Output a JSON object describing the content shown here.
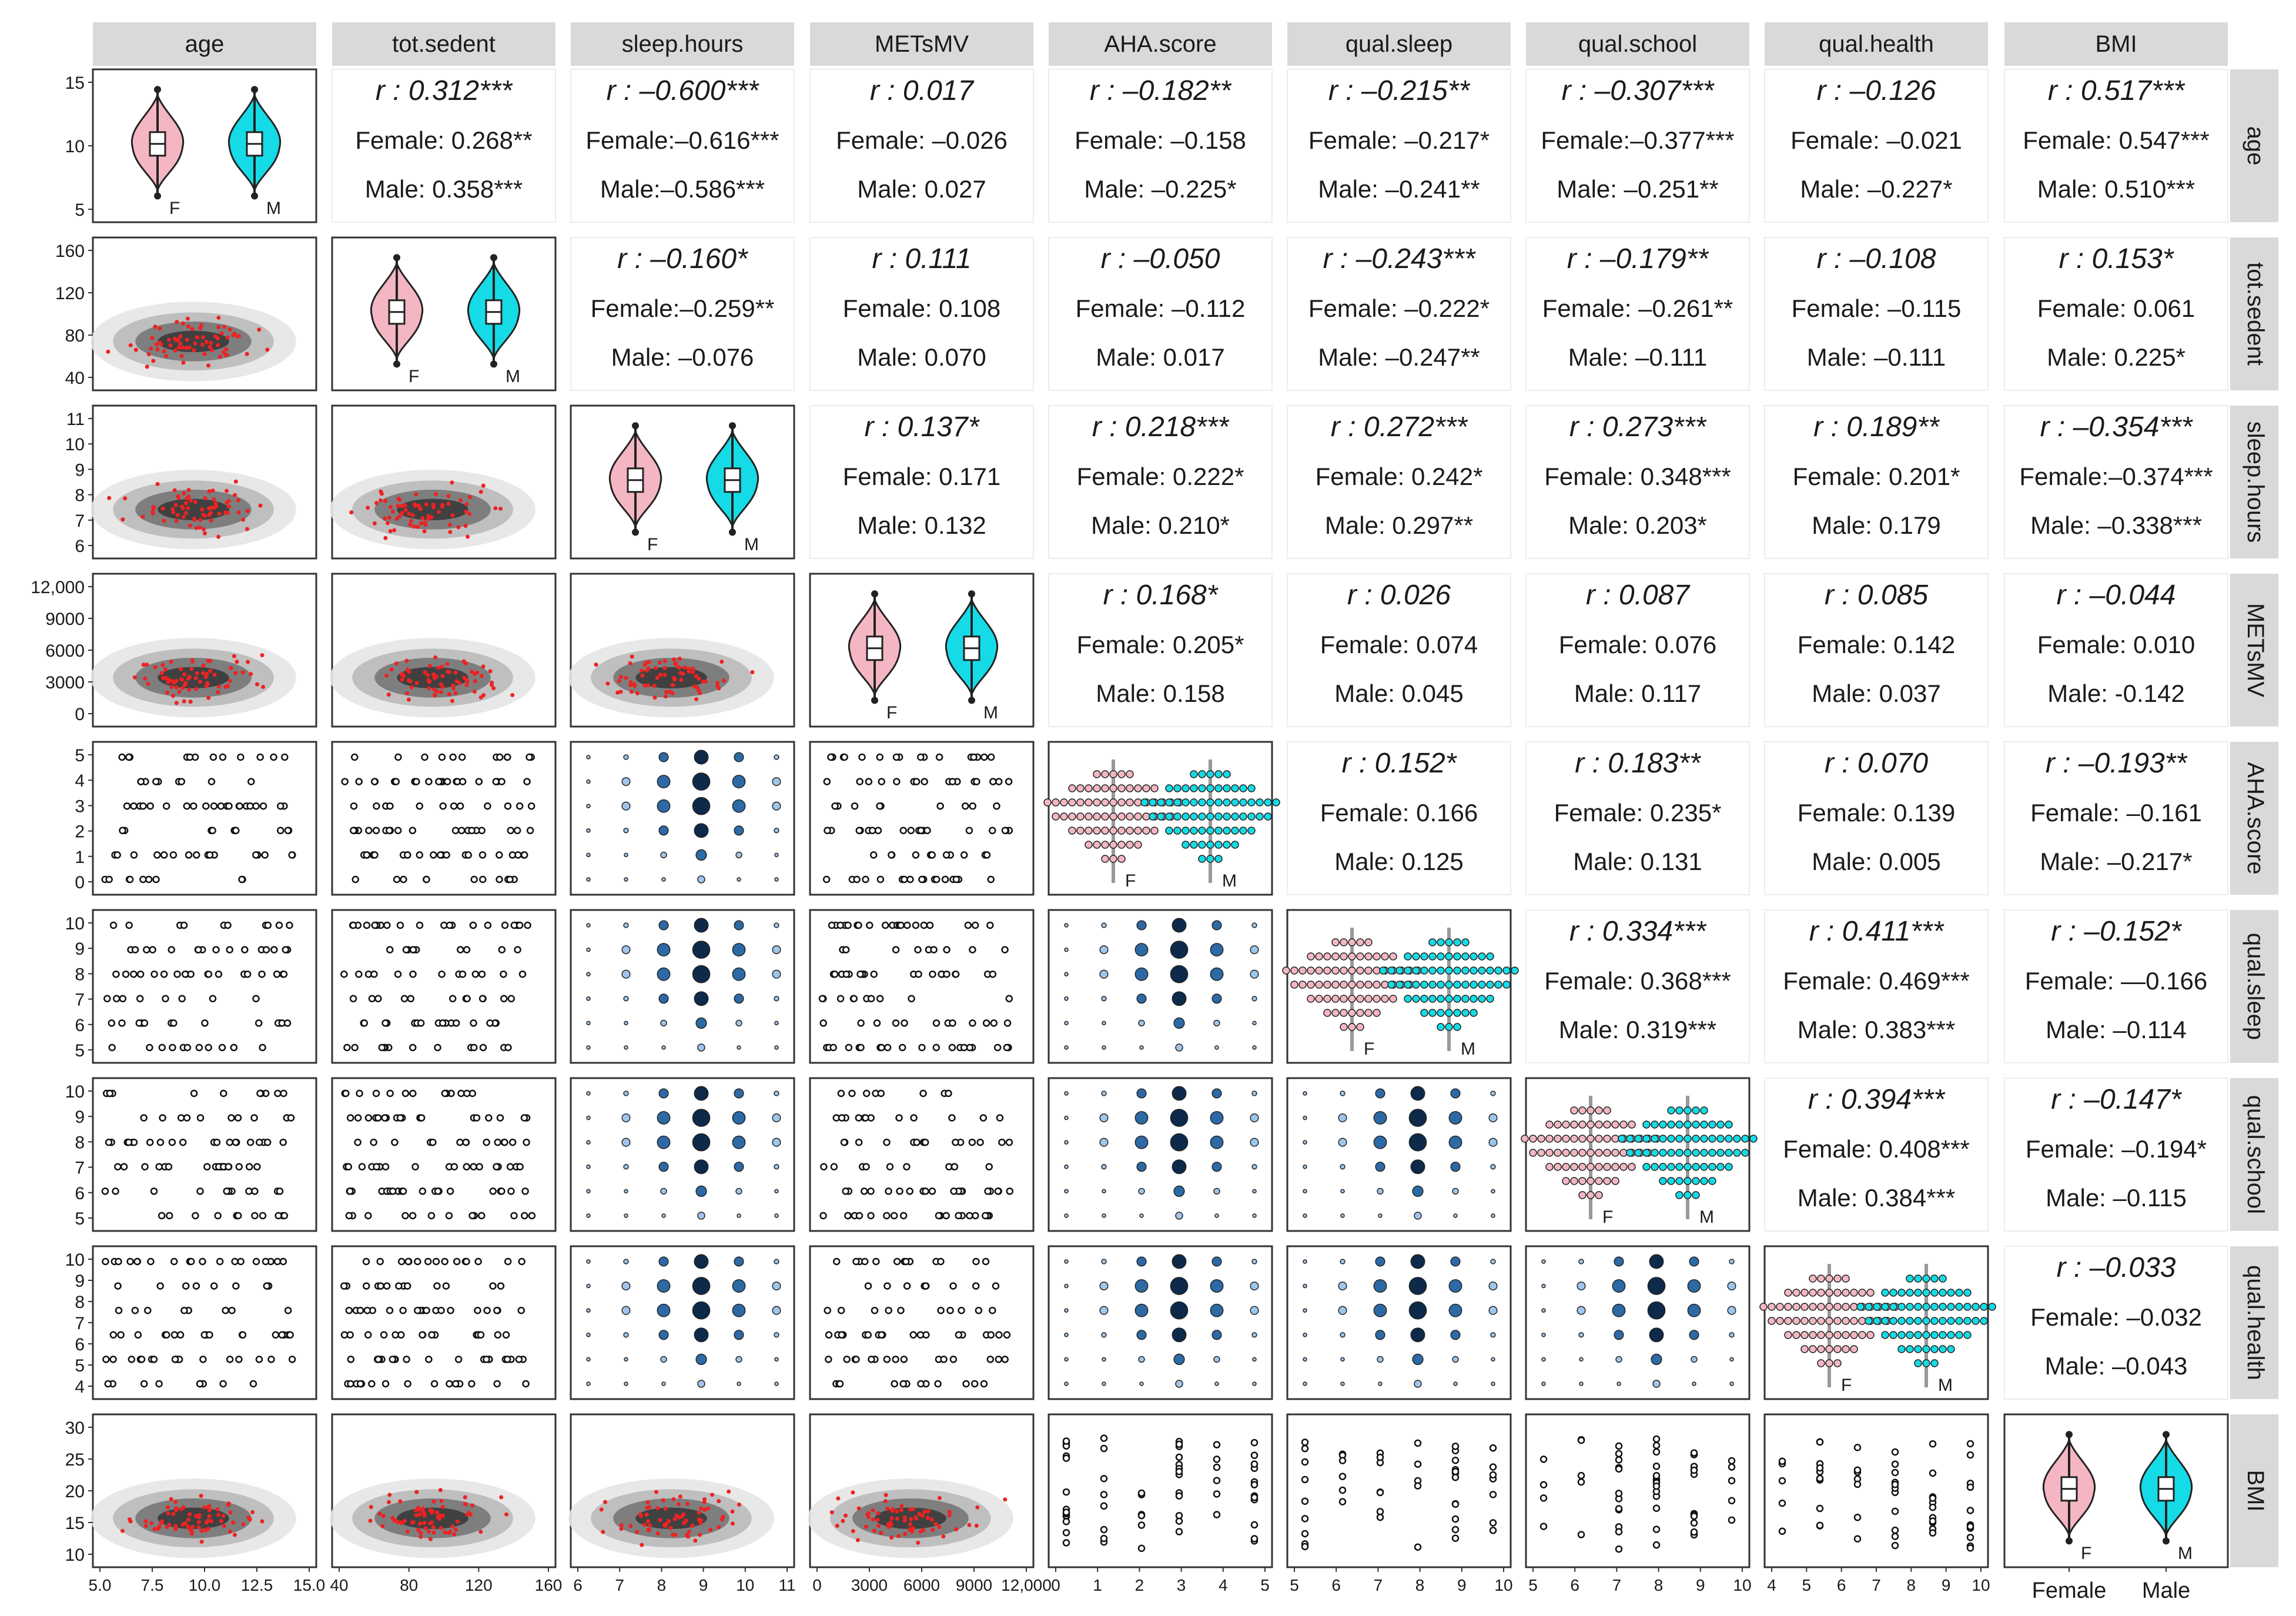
{
  "chart_data": {
    "type": "pairs",
    "title": "",
    "variables": [
      "age",
      "tot.sedent",
      "sleep.hours",
      "METsMV",
      "AHA.score",
      "qual.sleep",
      "qual.school",
      "qual.health",
      "BMI"
    ],
    "groups": [
      "Female",
      "Male"
    ],
    "group_short": [
      "F",
      "M"
    ],
    "colors": {
      "female": "#f4b6c2",
      "male": "#15dbe6",
      "points": "#ee2222",
      "strip": "#d9d9d9",
      "bubble_light": "#9fc6ea",
      "bubble_dark": "#0d2a4a",
      "density_light": "#e6e6e6",
      "density_dark": "#222222"
    },
    "axis": {
      "y_ticks": [
        [
          "5",
          "10",
          "15"
        ],
        [
          "40",
          "80",
          "120",
          "160"
        ],
        [
          "6",
          "7",
          "8",
          "9",
          "10",
          "11"
        ],
        [
          "0",
          "3000",
          "6000",
          "9000",
          "12,000"
        ],
        [
          "0",
          "1",
          "2",
          "3",
          "4",
          "5"
        ],
        [
          "5",
          "6",
          "7",
          "8",
          "9",
          "10"
        ],
        [
          "5",
          "6",
          "7",
          "8",
          "9",
          "10"
        ],
        [
          "4",
          "5",
          "6",
          "7",
          "8",
          "9",
          "10"
        ],
        [
          "10",
          "15",
          "20",
          "25",
          "30"
        ]
      ],
      "x_ticks": [
        [
          "5.0",
          "7.5",
          "10.0",
          "12.5",
          "15.0"
        ],
        [
          "40",
          "80",
          "120",
          "160"
        ],
        [
          "6",
          "7",
          "8",
          "9",
          "10",
          "11"
        ],
        [
          "0",
          "3000",
          "6000",
          "9000",
          "12,000"
        ],
        [
          "0",
          "1",
          "2",
          "3",
          "4",
          "5"
        ],
        [
          "5",
          "6",
          "7",
          "8",
          "9",
          "10"
        ],
        [
          "5",
          "6",
          "7",
          "8",
          "9",
          "10"
        ],
        [
          "4",
          "5",
          "6",
          "7",
          "8",
          "9",
          "10"
        ],
        [
          "Female",
          "Male"
        ]
      ]
    },
    "correlations": [
      {
        "row": "age",
        "col": "tot.sedent",
        "r": "r : 0.312***",
        "female": "Female: 0.268**",
        "male": "Male: 0.358***"
      },
      {
        "row": "age",
        "col": "sleep.hours",
        "r": "r : –0.600***",
        "female": "Female:–0.616***",
        "male": "Male:–0.586***"
      },
      {
        "row": "age",
        "col": "METsMV",
        "r": "r : 0.017",
        "female": "Female: –0.026",
        "male": "Male: 0.027"
      },
      {
        "row": "age",
        "col": "AHA.score",
        "r": "r : –0.182**",
        "female": "Female: –0.158",
        "male": "Male: –0.225*"
      },
      {
        "row": "age",
        "col": "qual.sleep",
        "r": "r : –0.215**",
        "female": "Female: –0.217*",
        "male": "Male: –0.241**"
      },
      {
        "row": "age",
        "col": "qual.school",
        "r": "r : –0.307***",
        "female": "Female:–0.377***",
        "male": "Male: –0.251**"
      },
      {
        "row": "age",
        "col": "qual.health",
        "r": "r : –0.126",
        "female": "Female: –0.021",
        "male": "Male: –0.227*"
      },
      {
        "row": "age",
        "col": "BMI",
        "r": "r : 0.517***",
        "female": "Female: 0.547***",
        "male": "Male: 0.510***"
      },
      {
        "row": "tot.sedent",
        "col": "sleep.hours",
        "r": "r : –0.160*",
        "female": "Female:–0.259**",
        "male": "Male: –0.076"
      },
      {
        "row": "tot.sedent",
        "col": "METsMV",
        "r": "r : 0.111",
        "female": "Female: 0.108",
        "male": "Male: 0.070"
      },
      {
        "row": "tot.sedent",
        "col": "AHA.score",
        "r": "r : –0.050",
        "female": "Female: –0.112",
        "male": "Male: 0.017"
      },
      {
        "row": "tot.sedent",
        "col": "qual.sleep",
        "r": "r : –0.243***",
        "female": "Female: –0.222*",
        "male": "Male: –0.247**"
      },
      {
        "row": "tot.sedent",
        "col": "qual.school",
        "r": "r : –0.179**",
        "female": "Female: –0.261**",
        "male": "Male: –0.111"
      },
      {
        "row": "tot.sedent",
        "col": "qual.health",
        "r": "r : –0.108",
        "female": "Female: –0.115",
        "male": "Male: –0.111"
      },
      {
        "row": "tot.sedent",
        "col": "BMI",
        "r": "r : 0.153*",
        "female": "Female: 0.061",
        "male": "Male: 0.225*"
      },
      {
        "row": "sleep.hours",
        "col": "METsMV",
        "r": "r : 0.137*",
        "female": "Female: 0.171",
        "male": "Male: 0.132"
      },
      {
        "row": "sleep.hours",
        "col": "AHA.score",
        "r": "r : 0.218***",
        "female": "Female: 0.222*",
        "male": "Male: 0.210*"
      },
      {
        "row": "sleep.hours",
        "col": "qual.sleep",
        "r": "r : 0.272***",
        "female": "Female: 0.242*",
        "male": "Male: 0.297**"
      },
      {
        "row": "sleep.hours",
        "col": "qual.school",
        "r": "r : 0.273***",
        "female": "Female: 0.348***",
        "male": "Male: 0.203*"
      },
      {
        "row": "sleep.hours",
        "col": "qual.health",
        "r": "r : 0.189**",
        "female": "Female: 0.201*",
        "male": "Male: 0.179"
      },
      {
        "row": "sleep.hours",
        "col": "BMI",
        "r": "r : –0.354***",
        "female": "Female:–0.374***",
        "male": "Male: –0.338***"
      },
      {
        "row": "METsMV",
        "col": "AHA.score",
        "r": "r : 0.168*",
        "female": "Female: 0.205*",
        "male": "Male: 0.158"
      },
      {
        "row": "METsMV",
        "col": "qual.sleep",
        "r": "r : 0.026",
        "female": "Female: 0.074",
        "male": "Male: 0.045"
      },
      {
        "row": "METsMV",
        "col": "qual.school",
        "r": "r : 0.087",
        "female": "Female: 0.076",
        "male": "Male: 0.117"
      },
      {
        "row": "METsMV",
        "col": "qual.health",
        "r": "r : 0.085",
        "female": "Female: 0.142",
        "male": "Male: 0.037"
      },
      {
        "row": "METsMV",
        "col": "BMI",
        "r": "r : –0.044",
        "female": "Female: 0.010",
        "male": "Male: -0.142"
      },
      {
        "row": "AHA.score",
        "col": "qual.sleep",
        "r": "r : 0.152*",
        "female": "Female: 0.166",
        "male": "Male: 0.125"
      },
      {
        "row": "AHA.score",
        "col": "qual.school",
        "r": "r : 0.183**",
        "female": "Female: 0.235*",
        "male": "Male: 0.131"
      },
      {
        "row": "AHA.score",
        "col": "qual.health",
        "r": "r : 0.070",
        "female": "Female: 0.139",
        "male": "Male: 0.005"
      },
      {
        "row": "AHA.score",
        "col": "BMI",
        "r": "r : –0.193**",
        "female": "Female: –0.161",
        "male": "Male: –0.217*"
      },
      {
        "row": "qual.sleep",
        "col": "qual.school",
        "r": "r : 0.334***",
        "female": "Female: 0.368***",
        "male": "Male: 0.319***"
      },
      {
        "row": "qual.sleep",
        "col": "qual.health",
        "r": "r : 0.411***",
        "female": "Female: 0.469***",
        "male": "Male: 0.383***"
      },
      {
        "row": "qual.sleep",
        "col": "BMI",
        "r": "r : –0.152*",
        "female": "Female: —0.166",
        "male": "Male: –0.114"
      },
      {
        "row": "qual.school",
        "col": "qual.health",
        "r": "r : 0.394***",
        "female": "Female: 0.408***",
        "male": "Male: 0.384***"
      },
      {
        "row": "qual.school",
        "col": "BMI",
        "r": "r : –0.147*",
        "female": "Female: –0.194*",
        "male": "Male: –0.115"
      },
      {
        "row": "qual.health",
        "col": "BMI",
        "r": "r : –0.033",
        "female": "Female: –0.032",
        "male": "Male: –0.043"
      }
    ]
  }
}
